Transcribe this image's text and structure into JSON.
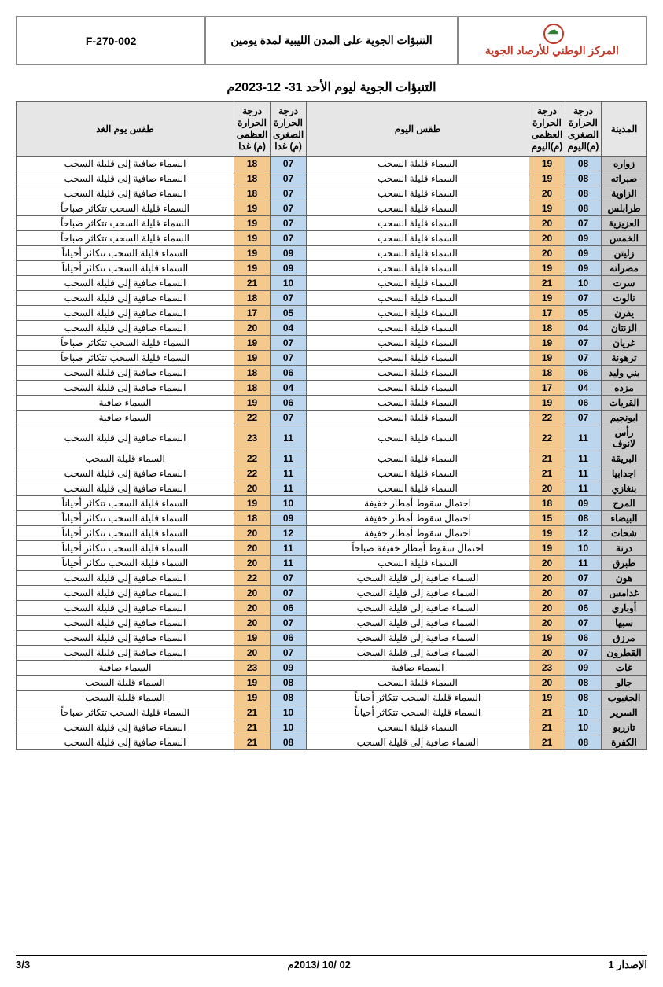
{
  "header": {
    "org": "المركز الوطني للأرصاد الجوية",
    "subtitle": "التنبؤات الجوية على المدن الليبية لمدة يومين",
    "code": "F-270-002"
  },
  "page_title": "التنبؤات الجوية ليوم الأحد  31- 12-2023م",
  "columns": {
    "city": "المدينة",
    "min_today": "درجة الحرارة الصغرى (م)اليوم",
    "max_today": "درجة الحرارة العظمى (م)اليوم",
    "weather_today": "طقس اليوم",
    "min_tomorrow": "درجة الحرارة الصغرى (م) غدا",
    "max_tomorrow": "درجة الحرارة العظمى (م) غدا",
    "weather_tomorrow": "طقس يوم الغد"
  },
  "colors": {
    "city_bg": "#c9c9c9",
    "min_bg": "#bcd6ee",
    "max_bg": "#f4c98e",
    "header_bg": "#e6e6e6",
    "border": "#666666",
    "accent": "#c0392b"
  },
  "rows": [
    {
      "city": "زواره",
      "min_today": "08",
      "max_today": "19",
      "weather_today": "السماء قليلة السحب",
      "min_tom": "07",
      "max_tom": "18",
      "weather_tom": "السماء صافية إلى قليلة السحب"
    },
    {
      "city": "صبراته",
      "min_today": "08",
      "max_today": "19",
      "weather_today": "السماء قليلة السحب",
      "min_tom": "07",
      "max_tom": "18",
      "weather_tom": "السماء صافية إلى قليلة السحب"
    },
    {
      "city": "الزاوية",
      "min_today": "08",
      "max_today": "20",
      "weather_today": "السماء قليلة السحب",
      "min_tom": "07",
      "max_tom": "18",
      "weather_tom": "السماء صافية إلى قليلة السحب"
    },
    {
      "city": "طرابلس",
      "min_today": "08",
      "max_today": "19",
      "weather_today": "السماء قليلة السحب",
      "min_tom": "07",
      "max_tom": "19",
      "weather_tom": "السماء قليلة السحب تتكاثر صباحاً"
    },
    {
      "city": "العزيزية",
      "min_today": "07",
      "max_today": "20",
      "weather_today": "السماء قليلة السحب",
      "min_tom": "07",
      "max_tom": "19",
      "weather_tom": "السماء قليلة السحب تتكاثر صباحاً"
    },
    {
      "city": "الخمس",
      "min_today": "09",
      "max_today": "20",
      "weather_today": "السماء قليلة السحب",
      "min_tom": "07",
      "max_tom": "19",
      "weather_tom": "السماء قليلة السحب تتكاثر صباحاً"
    },
    {
      "city": "زليتن",
      "min_today": "09",
      "max_today": "20",
      "weather_today": "السماء قليلة السحب",
      "min_tom": "09",
      "max_tom": "19",
      "weather_tom": "السماء قليلة السحب تتكاثر أحياناً"
    },
    {
      "city": "مصراته",
      "min_today": "09",
      "max_today": "19",
      "weather_today": "السماء قليلة السحب",
      "min_tom": "09",
      "max_tom": "19",
      "weather_tom": "السماء قليلة السحب تتكاثر أحياناً"
    },
    {
      "city": "سرت",
      "min_today": "10",
      "max_today": "21",
      "weather_today": "السماء قليلة السحب",
      "min_tom": "10",
      "max_tom": "21",
      "weather_tom": "السماء صافية إلى قليلة السحب"
    },
    {
      "city": "نالوت",
      "min_today": "07",
      "max_today": "19",
      "weather_today": "السماء قليلة السحب",
      "min_tom": "07",
      "max_tom": "18",
      "weather_tom": "السماء صافية إلى قليلة السحب"
    },
    {
      "city": "يفرن",
      "min_today": "05",
      "max_today": "17",
      "weather_today": "السماء قليلة السحب",
      "min_tom": "05",
      "max_tom": "17",
      "weather_tom": "السماء صافية إلى قليلة السحب"
    },
    {
      "city": "الزنتان",
      "min_today": "04",
      "max_today": "18",
      "weather_today": "السماء قليلة السحب",
      "min_tom": "04",
      "max_tom": "20",
      "weather_tom": "السماء صافية إلى قليلة السحب"
    },
    {
      "city": "غريان",
      "min_today": "07",
      "max_today": "19",
      "weather_today": "السماء قليلة السحب",
      "min_tom": "07",
      "max_tom": "19",
      "weather_tom": "السماء قليلة السحب تتكاثر صباحاً"
    },
    {
      "city": "ترهونة",
      "min_today": "07",
      "max_today": "19",
      "weather_today": "السماء قليلة السحب",
      "min_tom": "07",
      "max_tom": "19",
      "weather_tom": "السماء قليلة السحب تتكاثر صباحاً"
    },
    {
      "city": "بني وليد",
      "min_today": "06",
      "max_today": "18",
      "weather_today": "السماء قليلة السحب",
      "min_tom": "06",
      "max_tom": "18",
      "weather_tom": "السماء صافية إلى قليلة السحب"
    },
    {
      "city": "مزده",
      "min_today": "04",
      "max_today": "17",
      "weather_today": "السماء قليلة السحب",
      "min_tom": "04",
      "max_tom": "18",
      "weather_tom": "السماء صافية إلى قليلة السحب"
    },
    {
      "city": "القريات",
      "min_today": "06",
      "max_today": "19",
      "weather_today": "السماء قليلة السحب",
      "min_tom": "06",
      "max_tom": "19",
      "weather_tom": "السماء صافية"
    },
    {
      "city": "ابونجيم",
      "min_today": "07",
      "max_today": "22",
      "weather_today": "السماء قليلة السحب",
      "min_tom": "07",
      "max_tom": "22",
      "weather_tom": "السماء صافية"
    },
    {
      "city": "رأس لانوف",
      "min_today": "11",
      "max_today": "22",
      "weather_today": "السماء قليلة السحب",
      "min_tom": "11",
      "max_tom": "23",
      "weather_tom": "السماء صافية إلى قليلة السحب"
    },
    {
      "city": "البريقة",
      "min_today": "11",
      "max_today": "21",
      "weather_today": "السماء قليلة السحب",
      "min_tom": "11",
      "max_tom": "22",
      "weather_tom": "السماء قليلة السحب"
    },
    {
      "city": "اجدابيا",
      "min_today": "11",
      "max_today": "21",
      "weather_today": "السماء قليلة السحب",
      "min_tom": "11",
      "max_tom": "22",
      "weather_tom": "السماء صافية إلى قليلة السحب"
    },
    {
      "city": "بنغازي",
      "min_today": "11",
      "max_today": "20",
      "weather_today": "السماء قليلة السحب",
      "min_tom": "11",
      "max_tom": "20",
      "weather_tom": "السماء صافية إلى قليلة السحب"
    },
    {
      "city": "المرج",
      "min_today": "09",
      "max_today": "18",
      "weather_today": "احتمال سقوط أمطار خفيفة",
      "min_tom": "10",
      "max_tom": "19",
      "weather_tom": "السماء قليلة السحب تتكاثر أحياناً"
    },
    {
      "city": "البيضاء",
      "min_today": "08",
      "max_today": "15",
      "weather_today": "احتمال سقوط أمطار خفيفة",
      "min_tom": "09",
      "max_tom": "18",
      "weather_tom": "السماء قليلة السحب تتكاثر أحياناً"
    },
    {
      "city": "شحات",
      "min_today": "12",
      "max_today": "19",
      "weather_today": "احتمال سقوط أمطار خفيفة",
      "min_tom": "12",
      "max_tom": "20",
      "weather_tom": "السماء قليلة السحب تتكاثر أحياناً"
    },
    {
      "city": "درنة",
      "min_today": "10",
      "max_today": "19",
      "weather_today": "احتمال سقوط أمطار خفيفة صباحاً",
      "min_tom": "11",
      "max_tom": "20",
      "weather_tom": "السماء قليلة السحب تتكاثر أحياناً"
    },
    {
      "city": "طبرق",
      "min_today": "11",
      "max_today": "20",
      "weather_today": "السماء قليلة السحب",
      "min_tom": "11",
      "max_tom": "20",
      "weather_tom": "السماء قليلة السحب تتكاثر أحياناً"
    },
    {
      "city": "هون",
      "min_today": "07",
      "max_today": "20",
      "weather_today": "السماء صافية إلى قليلة السحب",
      "min_tom": "07",
      "max_tom": "22",
      "weather_tom": "السماء صافية إلى قليلة السحب"
    },
    {
      "city": "غدامس",
      "min_today": "07",
      "max_today": "20",
      "weather_today": "السماء صافية إلى قليلة السحب",
      "min_tom": "07",
      "max_tom": "20",
      "weather_tom": "السماء صافية إلى قليلة السحب"
    },
    {
      "city": "أوباري",
      "min_today": "06",
      "max_today": "20",
      "weather_today": "السماء صافية إلى قليلة السحب",
      "min_tom": "06",
      "max_tom": "20",
      "weather_tom": "السماء صافية إلى قليلة السحب"
    },
    {
      "city": "سبها",
      "min_today": "07",
      "max_today": "20",
      "weather_today": "السماء صافية إلى قليلة السحب",
      "min_tom": "07",
      "max_tom": "20",
      "weather_tom": "السماء صافية إلى قليلة السحب"
    },
    {
      "city": "مرزق",
      "min_today": "06",
      "max_today": "19",
      "weather_today": "السماء صافية إلى قليلة السحب",
      "min_tom": "06",
      "max_tom": "19",
      "weather_tom": "السماء صافية إلى قليلة السحب"
    },
    {
      "city": "القطرون",
      "min_today": "07",
      "max_today": "20",
      "weather_today": "السماء صافية إلى قليلة السحب",
      "min_tom": "07",
      "max_tom": "20",
      "weather_tom": "السماء صافية إلى قليلة السحب"
    },
    {
      "city": "غات",
      "min_today": "09",
      "max_today": "23",
      "weather_today": "السماء صافية",
      "min_tom": "09",
      "max_tom": "23",
      "weather_tom": "السماء صافية"
    },
    {
      "city": "جالو",
      "min_today": "08",
      "max_today": "20",
      "weather_today": "السماء قليلة السحب",
      "min_tom": "08",
      "max_tom": "19",
      "weather_tom": "السماء قليلة السحب"
    },
    {
      "city": "الجغبوب",
      "min_today": "08",
      "max_today": "19",
      "weather_today": "السماء قليلة السحب تتكاثر أحياناً",
      "min_tom": "08",
      "max_tom": "19",
      "weather_tom": "السماء قليلة السحب"
    },
    {
      "city": "السرير",
      "min_today": "10",
      "max_today": "21",
      "weather_today": "السماء قليلة السحب تتكاثر أحياناً",
      "min_tom": "10",
      "max_tom": "21",
      "weather_tom": "السماء قليلة السحب تتكاثر صباحاً"
    },
    {
      "city": "تازربو",
      "min_today": "10",
      "max_today": "21",
      "weather_today": "السماء قليلة السحب",
      "min_tom": "10",
      "max_tom": "21",
      "weather_tom": "السماء صافية إلى قليلة السحب"
    },
    {
      "city": "الكفرة",
      "min_today": "08",
      "max_today": "21",
      "weather_today": "السماء صافية إلى قليلة السحب",
      "min_tom": "08",
      "max_tom": "21",
      "weather_tom": "السماء صافية إلى قليلة السحب"
    }
  ],
  "footer": {
    "issue": "الإصدار 1",
    "date": "02 /10 /2013م",
    "page": "3/3"
  }
}
